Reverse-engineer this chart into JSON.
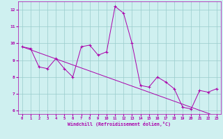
{
  "xlabel": "Windchill (Refroidissement éolien,°C)",
  "x": [
    0,
    1,
    2,
    3,
    4,
    5,
    6,
    7,
    8,
    9,
    10,
    11,
    12,
    13,
    14,
    15,
    16,
    17,
    18,
    19,
    20,
    21,
    22,
    23
  ],
  "y_line": [
    9.8,
    9.7,
    8.6,
    8.5,
    9.1,
    8.5,
    8.0,
    9.8,
    9.9,
    9.3,
    9.5,
    12.2,
    11.8,
    10.0,
    7.5,
    7.4,
    8.0,
    7.7,
    7.3,
    6.2,
    6.1,
    7.2,
    7.1,
    7.3
  ],
  "y_trend": [
    9.8,
    9.62,
    9.44,
    9.26,
    9.08,
    8.9,
    8.72,
    8.54,
    8.36,
    8.18,
    8.0,
    7.82,
    7.64,
    7.46,
    7.28,
    7.1,
    6.92,
    6.74,
    6.56,
    6.38,
    6.2,
    6.02,
    5.84,
    5.66
  ],
  "line_color": "#aa00aa",
  "bg_color": "#cff0f0",
  "grid_color": "#99cccc",
  "ylim": [
    5.8,
    12.5
  ],
  "xlim": [
    -0.5,
    23.5
  ],
  "yticks": [
    6,
    7,
    8,
    9,
    10,
    11,
    12
  ],
  "xticks": [
    0,
    1,
    2,
    3,
    4,
    5,
    6,
    7,
    8,
    9,
    10,
    11,
    12,
    13,
    14,
    15,
    16,
    17,
    18,
    19,
    20,
    21,
    22,
    23
  ]
}
